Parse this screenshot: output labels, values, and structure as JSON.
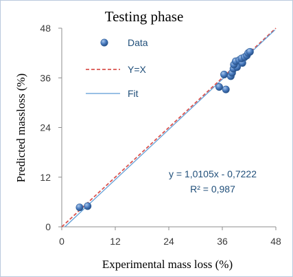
{
  "chart_data": {
    "type": "scatter",
    "title": "Testing phase",
    "xlabel": "Experimental mass loss  (%)",
    "ylabel": "Predicted massloss (%)",
    "xlim": [
      0,
      48
    ],
    "ylim": [
      0,
      48
    ],
    "xticks": [
      "0",
      "12",
      "24",
      "36",
      "48"
    ],
    "yticks": [
      "0",
      "12",
      "24",
      "36",
      "48"
    ],
    "grid": false,
    "legend_position": "top-left",
    "series": [
      {
        "name": "Data",
        "kind": "points",
        "color": "#3f6fb0",
        "points": [
          [
            4.0,
            4.7
          ],
          [
            5.8,
            5.0
          ],
          [
            35.3,
            33.8
          ],
          [
            36.8,
            33.2
          ],
          [
            36.4,
            36.8
          ],
          [
            37.9,
            36.4
          ],
          [
            38.2,
            37.2
          ],
          [
            38.5,
            38.2
          ],
          [
            39.3,
            38.6
          ],
          [
            38.6,
            39.2
          ],
          [
            39.0,
            40.0
          ],
          [
            39.8,
            40.3
          ],
          [
            40.5,
            39.6
          ],
          [
            40.3,
            40.7
          ],
          [
            41.0,
            41.0
          ],
          [
            41.5,
            41.4
          ],
          [
            41.8,
            42.0
          ],
          [
            42.2,
            42.3
          ]
        ]
      },
      {
        "name": "Y=X",
        "kind": "line",
        "color": "#d9534f",
        "dash": true,
        "slope": 1.0,
        "intercept": 0.0,
        "x_range": [
          0,
          48
        ]
      },
      {
        "name": "Fit",
        "kind": "line",
        "color": "#5b9bd5",
        "dash": false,
        "slope": 1.0105,
        "intercept": -0.7222,
        "x_range": [
          0,
          47.8
        ]
      }
    ],
    "annotations": {
      "equation": "y = 1,0105x - 0,7222",
      "r_squared": "R² = 0,987"
    }
  }
}
